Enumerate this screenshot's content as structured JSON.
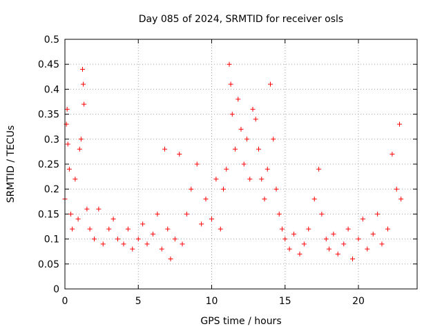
{
  "chart_data": {
    "type": "scatter",
    "title": "Day 085 of 2024, SRMTID for receiver osls",
    "xlabel": "GPS time / hours",
    "ylabel": "SRMTID / TECUs",
    "xlim": [
      0,
      24
    ],
    "ylim": [
      0,
      0.5
    ],
    "xticks": [
      0,
      5,
      10,
      15,
      20
    ],
    "xtick_labels": [
      "0",
      "5",
      "10",
      "15",
      "20"
    ],
    "yticks": [
      0,
      0.05,
      0.1,
      0.15,
      0.2,
      0.25,
      0.3,
      0.35,
      0.4,
      0.45,
      0.5
    ],
    "ytick_labels": [
      "0",
      "0.05",
      "0.1",
      "0.15",
      "0.2",
      "0.25",
      "0.3",
      "0.35",
      "0.4",
      "0.45",
      "0.5"
    ],
    "grid": true,
    "marker": "+",
    "series": [
      {
        "name": "SRMTID",
        "color": "#ff0000",
        "x": [
          0.0,
          0.1,
          0.15,
          0.2,
          0.3,
          0.4,
          0.5,
          0.7,
          0.9,
          1.0,
          1.1,
          1.2,
          1.25,
          1.3,
          1.5,
          1.7,
          2.0,
          2.3,
          2.6,
          3.0,
          3.3,
          3.6,
          4.0,
          4.3,
          4.6,
          5.0,
          5.3,
          5.6,
          6.0,
          6.3,
          6.6,
          6.8,
          7.0,
          7.2,
          7.5,
          7.8,
          8.0,
          8.3,
          8.6,
          9.0,
          9.3,
          9.6,
          10.0,
          10.3,
          10.6,
          10.8,
          11.0,
          11.2,
          11.3,
          11.4,
          11.6,
          11.8,
          12.0,
          12.2,
          12.4,
          12.6,
          12.8,
          13.0,
          13.2,
          13.4,
          13.6,
          13.8,
          14.0,
          14.2,
          14.4,
          14.6,
          14.8,
          15.0,
          15.3,
          15.6,
          16.0,
          16.3,
          16.6,
          17.0,
          17.3,
          17.5,
          17.8,
          18.0,
          18.3,
          18.6,
          19.0,
          19.3,
          19.6,
          20.0,
          20.3,
          20.6,
          21.0,
          21.3,
          21.6,
          22.0,
          22.3,
          22.6,
          22.8,
          22.9
        ],
        "y": [
          0.18,
          0.33,
          0.36,
          0.29,
          0.24,
          0.15,
          0.12,
          0.22,
          0.14,
          0.28,
          0.3,
          0.44,
          0.41,
          0.37,
          0.16,
          0.12,
          0.1,
          0.16,
          0.09,
          0.12,
          0.14,
          0.1,
          0.09,
          0.12,
          0.08,
          0.1,
          0.13,
          0.09,
          0.11,
          0.15,
          0.08,
          0.28,
          0.12,
          0.06,
          0.1,
          0.27,
          0.09,
          0.15,
          0.2,
          0.25,
          0.13,
          0.18,
          0.14,
          0.22,
          0.12,
          0.2,
          0.24,
          0.45,
          0.41,
          0.35,
          0.28,
          0.38,
          0.32,
          0.25,
          0.3,
          0.22,
          0.36,
          0.34,
          0.28,
          0.22,
          0.18,
          0.24,
          0.41,
          0.3,
          0.2,
          0.15,
          0.12,
          0.1,
          0.08,
          0.11,
          0.07,
          0.09,
          0.12,
          0.18,
          0.24,
          0.15,
          0.1,
          0.08,
          0.11,
          0.07,
          0.09,
          0.12,
          0.06,
          0.1,
          0.14,
          0.08,
          0.11,
          0.15,
          0.09,
          0.12,
          0.27,
          0.2,
          0.33,
          0.18
        ]
      }
    ]
  }
}
